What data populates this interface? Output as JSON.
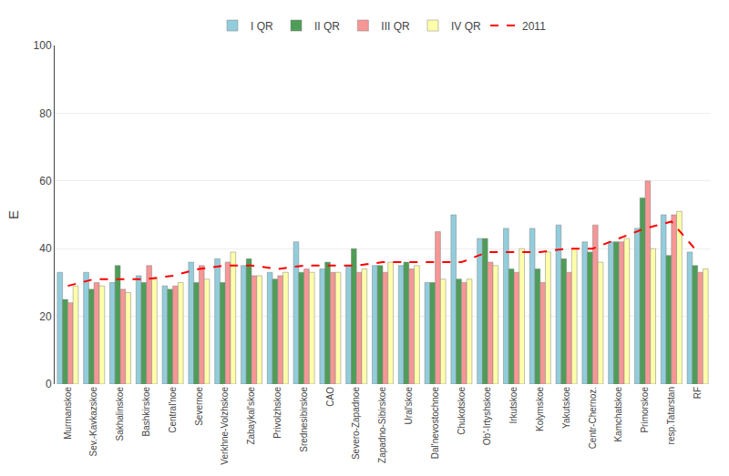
{
  "chart_data": {
    "type": "bar",
    "ylabel": "E",
    "categories": [
      "Murmanskoe",
      "Sev.-Kavkazskoe",
      "Sakhalinskoe",
      "Bashkirskoe",
      "Central'noe",
      "Severnoe",
      "Verkhne-Volzhskoe",
      "Zabaykal'skoe",
      "Privolzhskoe",
      "Srednesibirskoe",
      "CAO",
      "Severo-Zapadnoe",
      "Zapadno-Sibirskoe",
      "Ural'skoe",
      "Dal'nevostochnoe",
      "Chukotskoe",
      "Ob'-Irtyshskoe",
      "Irkutskoe",
      "Kolymskoe",
      "Yakutskoe",
      "Centr-Chernoz.",
      "Kamchatskoe",
      "Primorskoe",
      "resp.Tatarstan",
      "RF"
    ],
    "series": [
      {
        "name": "I QR",
        "type": "bar",
        "color": "#92CDDC",
        "values": [
          33,
          33,
          30,
          32,
          29,
          36,
          37,
          35,
          33,
          42,
          34,
          35,
          35,
          35,
          30,
          50,
          43,
          46,
          46,
          47,
          42,
          42,
          46,
          50,
          39
        ]
      },
      {
        "name": "II QR",
        "type": "bar",
        "color": "#4E9D57",
        "values": [
          25,
          28,
          35,
          30,
          28,
          30,
          30,
          37,
          31,
          33,
          36,
          40,
          35,
          36,
          30,
          31,
          43,
          34,
          34,
          37,
          39,
          42,
          55,
          38,
          35
        ]
      },
      {
        "name": "III QR",
        "type": "bar",
        "color": "#F79696",
        "values": [
          24,
          30,
          28,
          35,
          29,
          35,
          36,
          32,
          32,
          34,
          33,
          33,
          33,
          34,
          45,
          30,
          36,
          33,
          30,
          33,
          47,
          42,
          60,
          50,
          33
        ]
      },
      {
        "name": "IV QR",
        "type": "bar",
        "color": "#FFFFAA",
        "values": [
          29,
          29,
          27,
          31,
          30,
          31,
          39,
          32,
          33,
          33,
          33,
          34,
          36,
          35,
          31,
          31,
          35,
          40,
          39,
          40,
          36,
          43,
          40,
          51,
          34
        ]
      },
      {
        "name": "2011",
        "type": "line",
        "color": "#FF0000",
        "line_style": "dashed",
        "values": [
          29,
          31,
          31,
          31,
          32,
          34,
          35,
          35,
          34,
          35,
          35,
          35,
          36,
          36,
          36,
          36,
          39,
          39,
          39,
          40,
          40,
          43,
          46,
          48,
          39
        ]
      }
    ],
    "ylim": [
      0,
      100
    ],
    "yticks": [
      0,
      20,
      40,
      60,
      80,
      100
    ],
    "grid": true,
    "legend": "top"
  }
}
